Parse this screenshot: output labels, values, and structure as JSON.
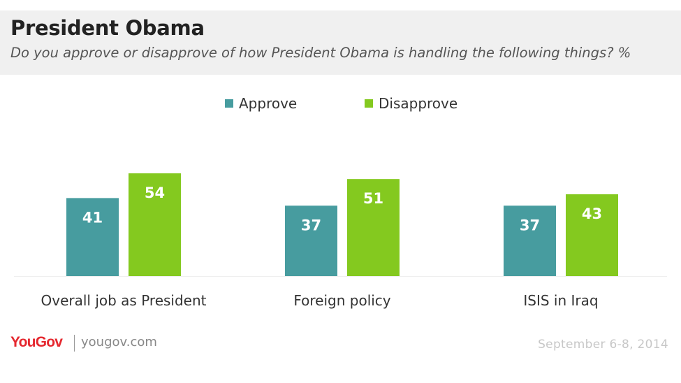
{
  "header": {
    "title": "President Obama",
    "subtitle": "Do you approve or disapprove of how President Obama is handling the following things? %"
  },
  "colors": {
    "approve": "#479c9f",
    "disapprove": "#84c91f",
    "header_bg": "#f0f0f0"
  },
  "chart_data": {
    "type": "bar",
    "categories": [
      "Overall job as President",
      "Foreign policy",
      "ISIS in Iraq"
    ],
    "series": [
      {
        "name": "Approve",
        "values": [
          41,
          37,
          37
        ],
        "color": "#479c9f"
      },
      {
        "name": "Disapprove",
        "values": [
          54,
          51,
          43
        ],
        "color": "#84c91f"
      }
    ],
    "ylim": [
      0,
      54
    ],
    "grid": false,
    "legend": "top-center",
    "data_labels": "inside-top"
  },
  "footer": {
    "logo": "YouGov",
    "site": "yougov.com",
    "date": "September 6-8, 2014"
  }
}
